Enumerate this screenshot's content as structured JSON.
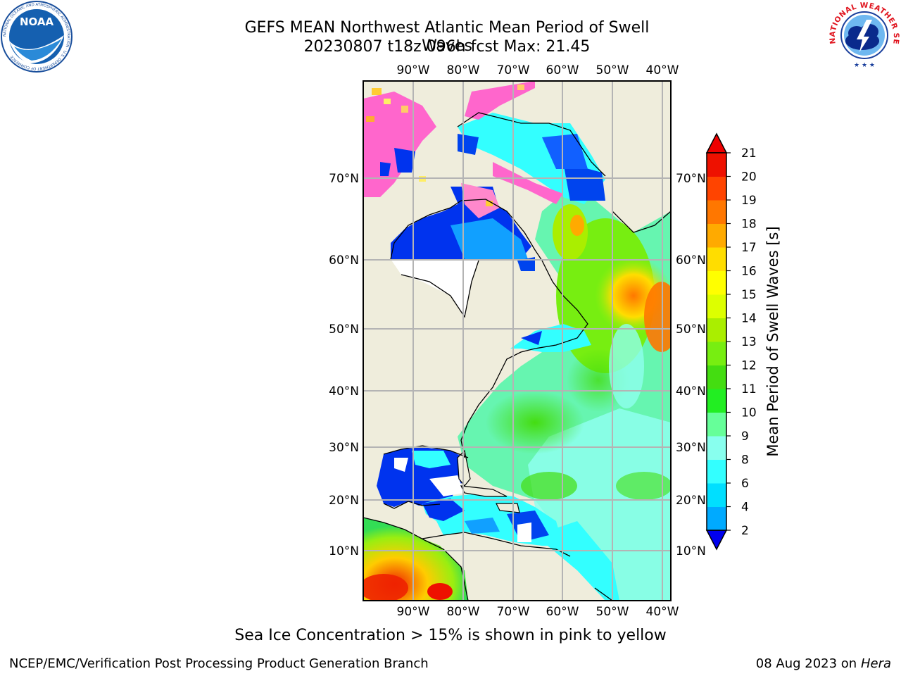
{
  "header": {
    "title_line1": "GEFS MEAN Northwest Atlantic Mean Period of Swell Waves",
    "title_line2": "20230807 t18z 096h fcst   Max: 21.45"
  },
  "logos": {
    "left": "NOAA",
    "left_ring_text": "NATIONAL OCEANIC AND ATMOSPHERIC ADMINISTRATION · U.S. DEPARTMENT OF COMMERCE",
    "right_ring_text": "NATIONAL WEATHER SERVICE"
  },
  "map": {
    "longitude_labels": [
      "90°W",
      "80°W",
      "70°W",
      "60°W",
      "50°W",
      "40°W"
    ],
    "latitude_labels": [
      "70°N",
      "60°N",
      "50°N",
      "40°N",
      "30°N",
      "20°N",
      "10°N"
    ],
    "land_color": "#efeddc",
    "grid_color": "#b4b4b4"
  },
  "colorbar": {
    "title": "Mean Period of Swell Waves [s]",
    "tick_labels": [
      "2",
      "4",
      "6",
      "8",
      "9",
      "10",
      "11",
      "12",
      "13",
      "14",
      "15",
      "16",
      "17",
      "18",
      "19",
      "20",
      "21"
    ],
    "colors": [
      "#0055ff",
      "#00aaff",
      "#00dfff",
      "#33ffff",
      "#88ffee",
      "#66ff99",
      "#22ee22",
      "#44dd11",
      "#77ee11",
      "#aaee00",
      "#ddff00",
      "#ffff00",
      "#ffdd00",
      "#ffaa00",
      "#ff7700",
      "#ff4400",
      "#ee1100"
    ],
    "under_color": "#0000ee",
    "over_color": "#ee0000"
  },
  "notes": {
    "ice": "Sea Ice Concentration > 15% is shown in pink to yellow"
  },
  "footer": {
    "left": "NCEP/EMC/Verification Post Processing Product Generation Branch",
    "date": "08 Aug 2023 on",
    "host": "Hera"
  }
}
